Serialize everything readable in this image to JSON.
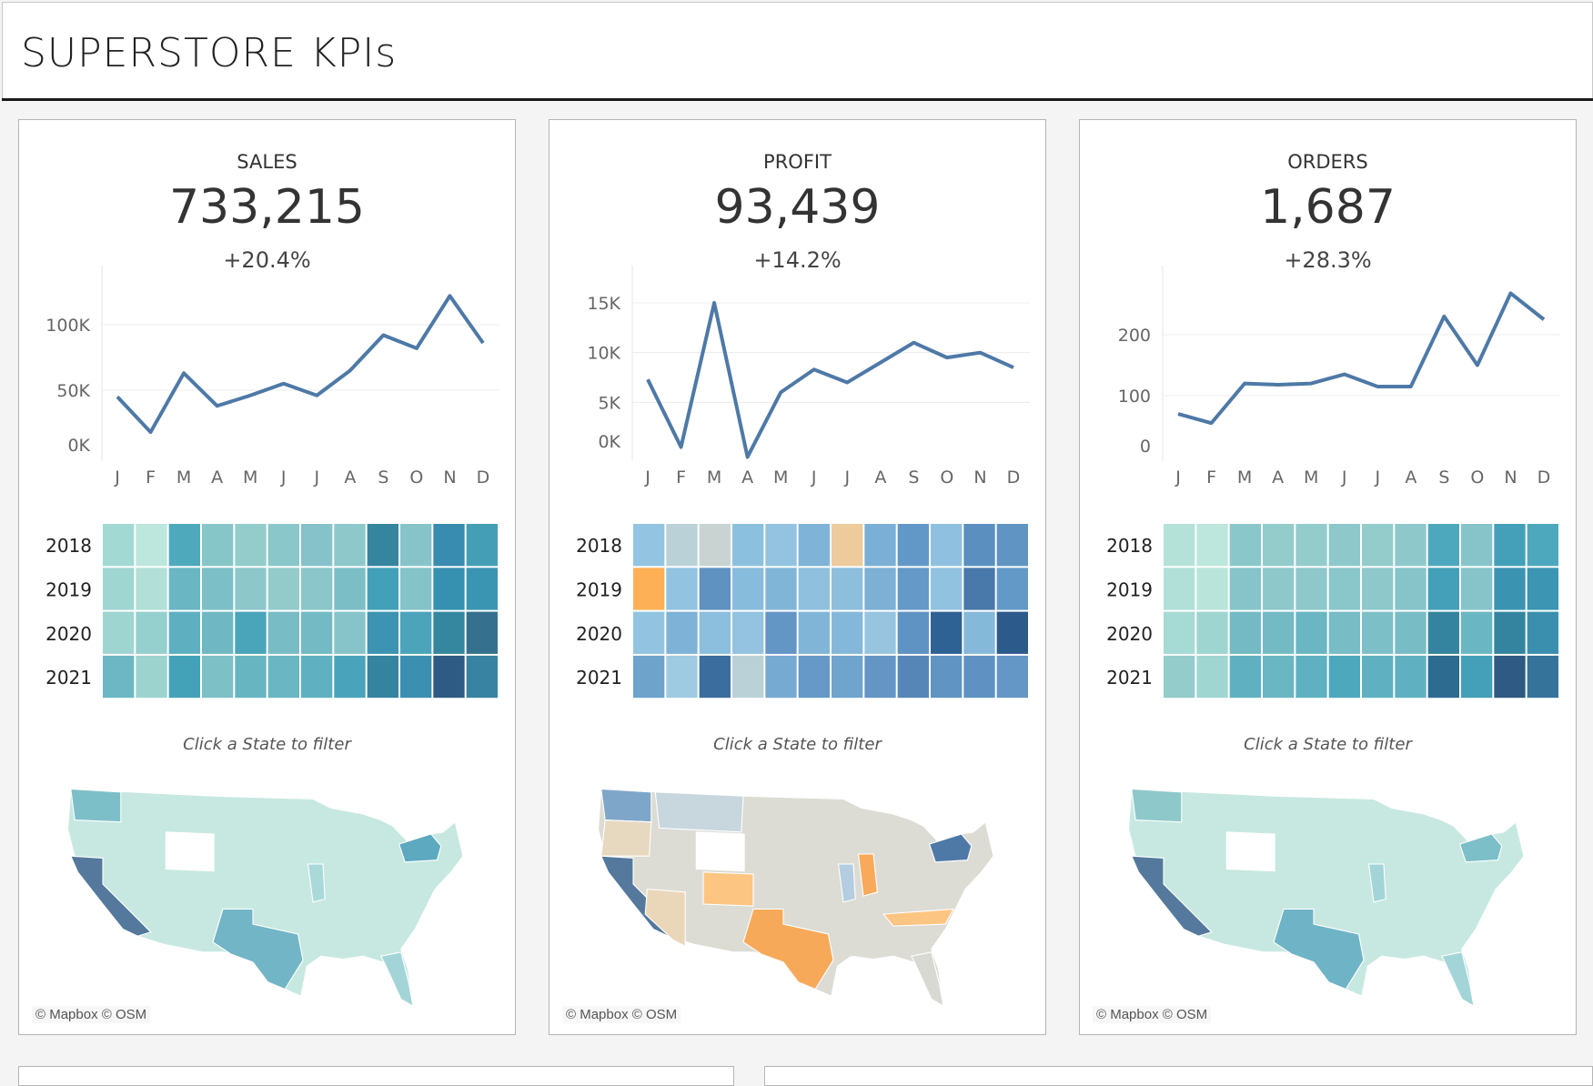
{
  "header": {
    "title": "SUPERSTORE KPIs"
  },
  "months": [
    "J",
    "F",
    "M",
    "A",
    "M",
    "J",
    "J",
    "A",
    "S",
    "O",
    "N",
    "D"
  ],
  "years": [
    "2018",
    "2019",
    "2020",
    "2021"
  ],
  "line_color": "#4e79a7",
  "cards": [
    {
      "label": "SALES",
      "value": "733,215",
      "change": "+20.4%",
      "hint": "Click a State to filter",
      "credit": "© Mapbox  © OSM",
      "chart_data": {
        "type": "line",
        "x": [
          "J",
          "F",
          "M",
          "A",
          "M",
          "J",
          "J",
          "A",
          "S",
          "O",
          "N",
          "D"
        ],
        "values": [
          45,
          18,
          63,
          38,
          46,
          55,
          46,
          65,
          92,
          82,
          122,
          86
        ],
        "yticks": [
          {
            "v": 0,
            "label": "0K"
          },
          {
            "v": 50,
            "label": "50K"
          },
          {
            "v": 100,
            "label": "100K"
          }
        ],
        "unit": "K"
      },
      "heatmap_colors": [
        [
          "#a3d9d3",
          "#bde6dc",
          "#4fa9bd",
          "#86c5c8",
          "#93cccb",
          "#8ac7ca",
          "#86c2c9",
          "#8ec8cb",
          "#35859f",
          "#86c4c9",
          "#388caf",
          "#449fb6"
        ],
        [
          "#a0d6d1",
          "#b2e0d8",
          "#6ab6c3",
          "#7cbfc6",
          "#8dc7ca",
          "#93cbcb",
          "#8ac6ca",
          "#7bbec6",
          "#42a0b8",
          "#84c3c8",
          "#3690b0",
          "#3a95b2"
        ],
        [
          "#9fd5d1",
          "#96d0ce",
          "#5eb0c1",
          "#6fb8c3",
          "#4aa4ba",
          "#78bcc5",
          "#73bac5",
          "#86c4c9",
          "#3c93b2",
          "#4ba4ba",
          "#34879f",
          "#35718f"
        ],
        [
          "#6cb7c3",
          "#9cd3cf",
          "#43a2b8",
          "#7dc0c6",
          "#68b5c2",
          "#6ab6c2",
          "#5fb1c1",
          "#49a3ba",
          "#35849f",
          "#3b8fb0",
          "#2e5b84",
          "#3883a2"
        ]
      ],
      "map_colors": {
        "base": "#c7e8e0",
        "ca": "#54799c",
        "tx": "#72b5c6",
        "ny": "#5da9c0",
        "wa": "#7dbfc9",
        "mid": "#a9d9d8",
        "wy": "#ffffff",
        "fl": "#a3d5d8"
      }
    },
    {
      "label": "PROFIT",
      "value": "93,439",
      "change": "+14.2%",
      "hint": "Click a State to filter",
      "credit": "© Mapbox  © OSM",
      "chart_data": {
        "type": "line",
        "x": [
          "J",
          "F",
          "M",
          "A",
          "M",
          "J",
          "J",
          "A",
          "S",
          "O",
          "N",
          "D"
        ],
        "values": [
          7.3,
          0.5,
          15,
          -0.5,
          6,
          8.3,
          7,
          9,
          11,
          9.5,
          10,
          8.5
        ],
        "yticks": [
          {
            "v": 0,
            "label": "0K"
          },
          {
            "v": 5,
            "label": "5K"
          },
          {
            "v": 10,
            "label": "10K"
          },
          {
            "v": 15,
            "label": "15K"
          }
        ],
        "unit": "K"
      },
      "heatmap_colors": [
        [
          "#93c4e2",
          "#bad1d8",
          "#c8d3d2",
          "#8cc0df",
          "#93c3e0",
          "#7fb3d8",
          "#edcb9c",
          "#7bb0d6",
          "#6198c7",
          "#8fc0df",
          "#5a8fc0",
          "#5f94c3"
        ],
        [
          "#fdb056",
          "#92c3e1",
          "#5f92c1",
          "#88bcdc",
          "#80b5d8",
          "#8fc0de",
          "#8dbfdd",
          "#7cb0d5",
          "#6499c8",
          "#91c2e0",
          "#4979aa",
          "#6299c7"
        ],
        [
          "#92c4e1",
          "#7eb2d7",
          "#8cbfdd",
          "#93c3e0",
          "#6396c5",
          "#80b5d8",
          "#84b8da",
          "#97c5e0",
          "#5f93c3",
          "#2f6294",
          "#85b9da",
          "#2c5a8a"
        ],
        [
          "#6ea3cc",
          "#9ecbe2",
          "#3b6d9f",
          "#bad1d8",
          "#77aad2",
          "#6699c7",
          "#6fa4cd",
          "#6396c5",
          "#5586b7",
          "#6094c3",
          "#5f92c2",
          "#6497c6"
        ]
      ],
      "map_colors": {
        "base": "#dcdcd5",
        "ca": "#54799c",
        "tx": "#f7a95a",
        "ny": "#4e79a7",
        "wa": "#7ea6c9",
        "mid": "#b5cde0",
        "wy": "#ffffff",
        "fl": "#d9d9d4",
        "co": "#fdc582",
        "il": "#f9a95a",
        "nc": "#fdc582",
        "or": "#e6d9c0",
        "az": "#ead7b9",
        "mt": "#c8d6de"
      }
    },
    {
      "label": "ORDERS",
      "value": "1,687",
      "change": "+28.3%",
      "hint": "Click a State to filter",
      "credit": "© Mapbox  © OSM",
      "chart_data": {
        "type": "line",
        "x": [
          "J",
          "F",
          "M",
          "A",
          "M",
          "J",
          "J",
          "A",
          "S",
          "O",
          "N",
          "D"
        ],
        "values": [
          70,
          55,
          120,
          118,
          120,
          135,
          115,
          115,
          230,
          150,
          268,
          225
        ],
        "yticks": [
          {
            "v": 0,
            "label": "0"
          },
          {
            "v": 100,
            "label": "100"
          },
          {
            "v": 200,
            "label": "200"
          }
        ],
        "unit": ""
      },
      "heatmap_colors": [
        [
          "#b4e2d8",
          "#bde6dc",
          "#8ac7ca",
          "#93cccb",
          "#93cccb",
          "#8ec8cb",
          "#93cccb",
          "#8ec8cb",
          "#4ea8bd",
          "#86c4c9",
          "#43a0b8",
          "#4ea8bd"
        ],
        [
          "#b0e0d7",
          "#b9e4da",
          "#86c4c9",
          "#8ec8cb",
          "#8ec8cb",
          "#8ac7ca",
          "#8ec8cb",
          "#86c4c9",
          "#43a0b8",
          "#86c4c9",
          "#3b93b2",
          "#3b95b3"
        ],
        [
          "#a6dad4",
          "#9fd5d1",
          "#73bac5",
          "#73bac5",
          "#6ab6c2",
          "#78bcc5",
          "#7dbfc6",
          "#78bcc5",
          "#35849f",
          "#6ab6c2",
          "#35849f",
          "#3a8faf"
        ],
        [
          "#93cccb",
          "#a0d6d1",
          "#5fb1c1",
          "#6ab6c2",
          "#5fb1c1",
          "#4ea8bd",
          "#5fb1c1",
          "#5fb1c1",
          "#2e6b91",
          "#43a0b8",
          "#2e5a84",
          "#35739b"
        ]
      ],
      "map_colors": {
        "base": "#c7e8e0",
        "ca": "#54799c",
        "tx": "#6fb4c6",
        "ny": "#7dbfc9",
        "wa": "#8ec8cb",
        "mid": "#a3d5d8",
        "wy": "#ffffff",
        "fl": "#a3d5d8"
      }
    }
  ]
}
